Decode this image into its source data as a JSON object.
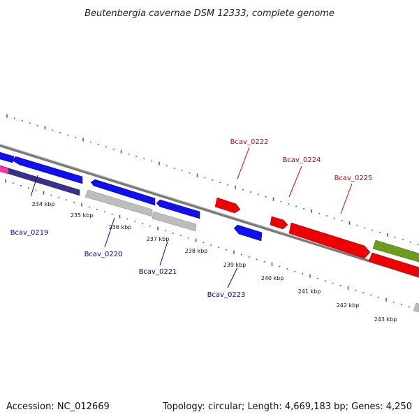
{
  "title": "Beutenbergia cavernae DSM 12333, complete genome",
  "footer": {
    "accession": "Accession: NC_012669",
    "summary": "Topology: circular; Length: 4,669,183 bp; Genes: 4,250"
  },
  "colors": {
    "backbone": "#888888",
    "tick": "#1a8a1a",
    "forward_label": "#cc0000",
    "reverse_label": "#0000aa",
    "blue": "#1010ee",
    "red": "#ee0000",
    "grey": "#bdbdbd",
    "olive": "#6e9a1e",
    "navy": "#3a2f8a",
    "pink": "#ff33aa"
  },
  "scale_labels": [
    "234 kbp",
    "235 kbp",
    "236 kbp",
    "237 kbp",
    "238 kbp",
    "239 kbp",
    "240 kbp",
    "241 kbp",
    "242 kbp",
    "243 kbp"
  ],
  "gene_labels": [
    {
      "text": "Bcav_0219",
      "strand": "reverse"
    },
    {
      "text": "Bcav_0220",
      "strand": "reverse"
    },
    {
      "text": "Bcav_0221",
      "strand": "reverse"
    },
    {
      "text": "Bcav_0222",
      "strand": "forward"
    },
    {
      "text": "Bcav_0223",
      "strand": "reverse"
    },
    {
      "text": "Bcav_0224",
      "strand": "forward"
    },
    {
      "text": "Bcav_0225",
      "strand": "forward"
    }
  ]
}
